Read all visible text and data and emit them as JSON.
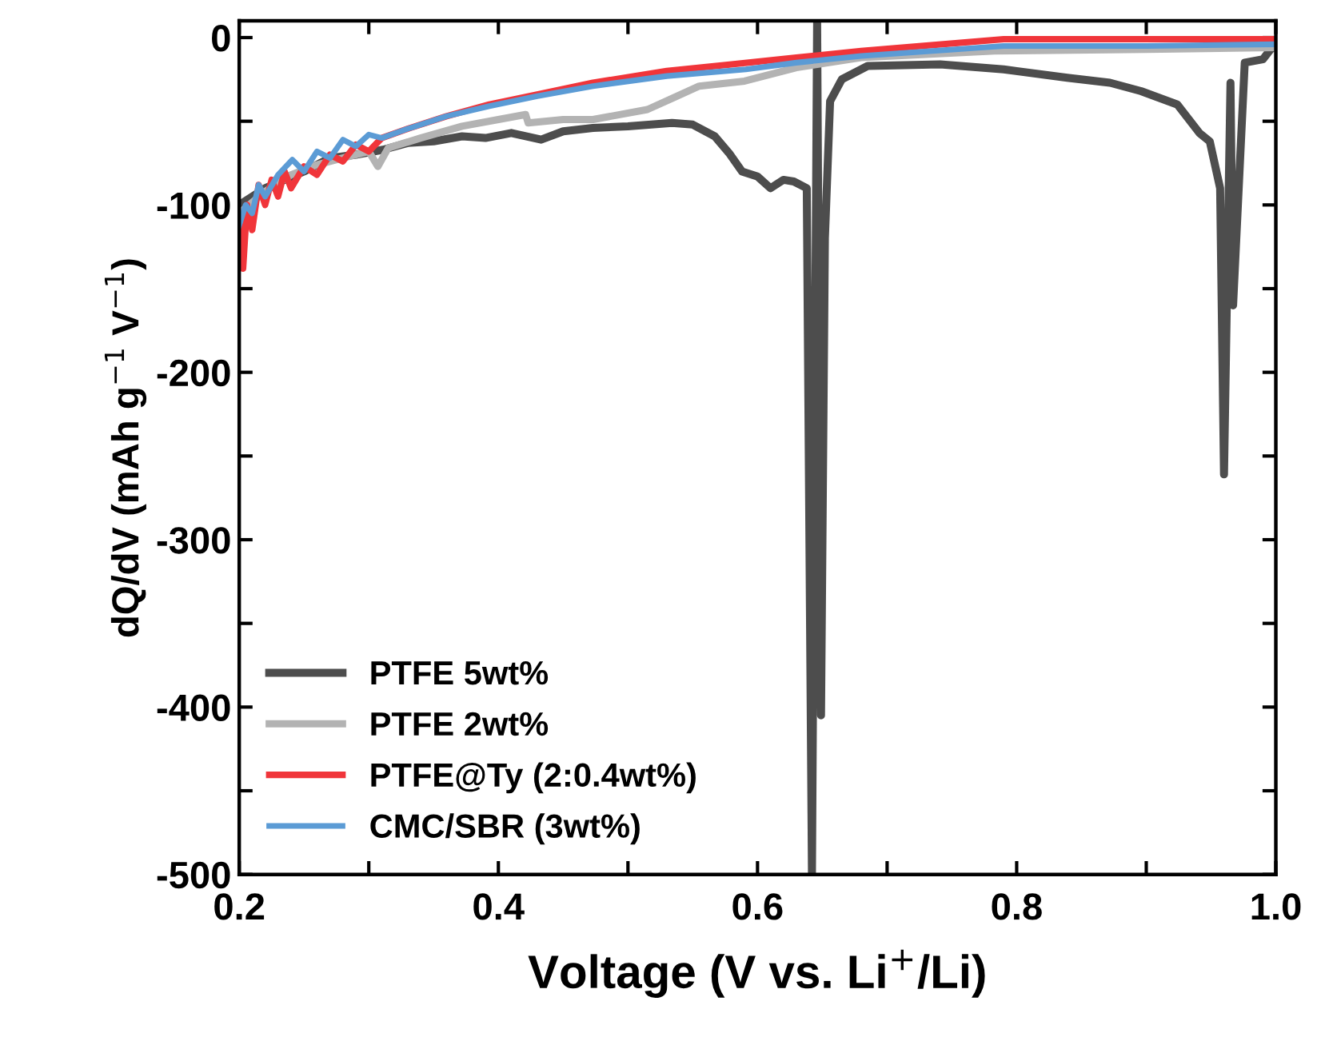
{
  "chart_data": {
    "type": "line",
    "xlabel": "Voltage (V vs. Li$^{+}$/Li)",
    "ylabel": "dQ/dV (mAh g$^{−1}$ V$^{−1}$)",
    "xlim": [
      0.2,
      1.0
    ],
    "ylim": [
      -500,
      10
    ],
    "xticks": [
      0.2,
      {
        "value": 0.3,
        "label": null
      },
      0.4,
      {
        "value": 0.5,
        "label": null
      },
      0.6,
      {
        "value": 0.7,
        "label": null
      },
      0.8,
      {
        "value": 0.9,
        "label": null
      },
      {
        "value": 1.0,
        "label": "1.0"
      }
    ],
    "yticks": [
      -500,
      {
        "value": -450,
        "label": null
      },
      -400,
      {
        "value": -350,
        "label": null
      },
      -300,
      {
        "value": -250,
        "label": null
      },
      -200,
      {
        "value": -150,
        "label": null
      },
      -100,
      {
        "value": -50,
        "label": null
      },
      0
    ],
    "grid": false,
    "legend": "bottom left",
    "line_style": "solid",
    "marker": "none",
    "series": [
      {
        "name": "PTFE 5wt%",
        "color": "#4d4d4d",
        "x": [
          0.2,
          0.22,
          0.25,
          0.27,
          0.29,
          0.311,
          0.33,
          0.35,
          0.372,
          0.39,
          0.41,
          0.433,
          0.45,
          0.473,
          0.5,
          0.534,
          0.55,
          0.567,
          0.578,
          0.588,
          0.6,
          0.61,
          0.62,
          0.628,
          0.638,
          0.642,
          0.646,
          0.649,
          0.652,
          0.656,
          0.665,
          0.685,
          0.741,
          0.79,
          0.839,
          0.872,
          0.896,
          0.924,
          0.941,
          0.949,
          0.957,
          0.96,
          0.965,
          0.967,
          0.976,
          0.99,
          0.996,
          1.0
        ],
        "values": [
          -100,
          -90,
          -80,
          -72,
          -70,
          -67,
          -63,
          -62,
          -59,
          -60,
          -57,
          -61,
          -56,
          -54,
          -53,
          -51,
          -52,
          -59,
          -69,
          -80,
          -83,
          -90,
          -85,
          -86,
          -90,
          -500,
          10,
          -405,
          -120,
          -38,
          -25,
          -17,
          -16,
          -19,
          -24,
          -27,
          -32,
          -40,
          -57,
          -62,
          -90,
          -261,
          -27,
          -160,
          -15,
          -13,
          -7,
          -5
        ]
      },
      {
        "name": "PTFE 2wt%",
        "color": "#b3b3b3",
        "x": [
          0.2,
          0.22,
          0.24,
          0.26,
          0.28,
          0.3,
          0.307,
          0.315,
          0.34,
          0.372,
          0.4,
          0.421,
          0.423,
          0.45,
          0.473,
          0.515,
          0.535,
          0.555,
          0.59,
          0.63,
          0.68,
          0.783,
          0.9,
          1.0
        ],
        "values": [
          -105,
          -92,
          -82,
          -76,
          -72,
          -68,
          -77,
          -66,
          -60,
          -53,
          -49,
          -46,
          -51,
          -49,
          -49,
          -43,
          -36,
          -29,
          -26,
          -18,
          -12,
          -8,
          -7,
          -6
        ]
      },
      {
        "name": "PTFE@Ty (2:0.4wt%)",
        "color": "#f0353a",
        "x": [
          0.2,
          0.203,
          0.206,
          0.21,
          0.215,
          0.22,
          0.225,
          0.23,
          0.235,
          0.24,
          0.25,
          0.26,
          0.27,
          0.28,
          0.29,
          0.3,
          0.31,
          0.332,
          0.36,
          0.393,
          0.43,
          0.473,
          0.53,
          0.58,
          0.63,
          0.68,
          0.79,
          0.9,
          1.0
        ],
        "values": [
          -110,
          -138,
          -100,
          -115,
          -88,
          -100,
          -85,
          -95,
          -80,
          -90,
          -77,
          -82,
          -70,
          -74,
          -64,
          -68,
          -60,
          -54,
          -47,
          -40,
          -34,
          -27,
          -20,
          -16,
          -12,
          -8,
          -1,
          -1,
          -1
        ]
      },
      {
        "name": "CMC/SBR (3wt%)",
        "color": "#5b9bd5",
        "x": [
          0.2,
          0.205,
          0.21,
          0.215,
          0.22,
          0.23,
          0.241,
          0.25,
          0.26,
          0.27,
          0.28,
          0.29,
          0.3,
          0.31,
          0.332,
          0.36,
          0.393,
          0.43,
          0.473,
          0.53,
          0.591,
          0.63,
          0.68,
          0.79,
          0.9,
          1.0
        ],
        "values": [
          -112,
          -100,
          -105,
          -88,
          -95,
          -82,
          -73,
          -80,
          -68,
          -72,
          -61,
          -65,
          -58,
          -60,
          -54,
          -47,
          -41,
          -35,
          -29,
          -23,
          -19,
          -15,
          -11,
          -5,
          -5,
          -4
        ]
      }
    ]
  }
}
